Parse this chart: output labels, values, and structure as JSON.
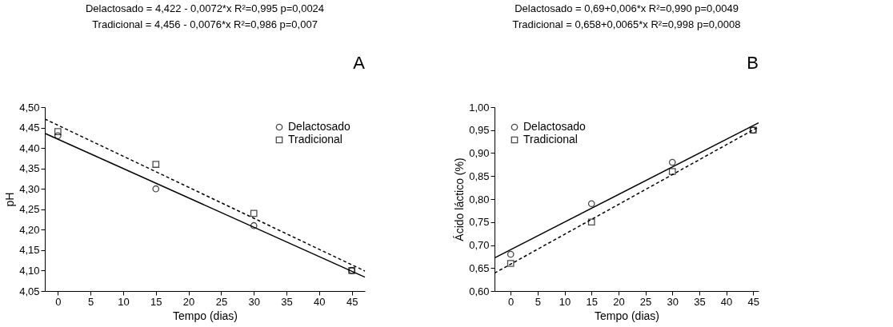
{
  "chart_data": [
    {
      "type": "scatter",
      "title": "A",
      "annotations": [
        "Delactosado = 4,422 - 0,0072*x R²=0,995 p=0,0024",
        "Tradicional = 4,456 - 0,0076*x R²=0,986 p=0,007"
      ],
      "xlabel": "Tempo (dias)",
      "ylabel": "pH",
      "xlim": [
        -2,
        47
      ],
      "ylim": [
        4.05,
        4.5
      ],
      "xticks": [
        0,
        5,
        10,
        15,
        20,
        25,
        30,
        35,
        40,
        45
      ],
      "yticks": [
        {
          "value": 4.05,
          "label": "4,05"
        },
        {
          "value": 4.1,
          "label": "4,10"
        },
        {
          "value": 4.15,
          "label": "4,15"
        },
        {
          "value": 4.2,
          "label": "4,20"
        },
        {
          "value": 4.25,
          "label": "4,25"
        },
        {
          "value": 4.3,
          "label": "4,30"
        },
        {
          "value": 4.35,
          "label": "4,35"
        },
        {
          "value": 4.4,
          "label": "4,40"
        },
        {
          "value": 4.45,
          "label": "4,45"
        },
        {
          "value": 4.5,
          "label": "4,50"
        }
      ],
      "legend": "top right",
      "grid": false,
      "series": [
        {
          "name": "Delactosado",
          "marker": "circle",
          "color": "#000000",
          "x": [
            0,
            15,
            30,
            45
          ],
          "values": [
            4.43,
            4.3,
            4.21,
            4.1
          ]
        },
        {
          "name": "Tradicional",
          "marker": "square",
          "color": "#000000",
          "x": [
            0,
            15,
            30,
            45
          ],
          "values": [
            4.44,
            4.36,
            4.24,
            4.1
          ]
        },
        {
          "type": "line",
          "line_style": "solid",
          "color": "#000000",
          "x": [
            -2,
            47
          ],
          "values": [
            4.436,
            4.084
          ]
        },
        {
          "type": "line",
          "line_style": "dashed",
          "color": "#000000",
          "x": [
            -2,
            47
          ],
          "values": [
            4.471,
            4.099
          ]
        }
      ]
    },
    {
      "type": "scatter",
      "title": "B",
      "annotations": [
        "Delactosado = 0,69+0,006*x R²=0,990 p=0,0049",
        "Tradicional = 0,658+0,0065*x  R²=0,998 p=0,0008"
      ],
      "xlabel": "Tempo (dias)",
      "ylabel": "Ácido láctico (%)",
      "xlim": [
        -3,
        46
      ],
      "ylim": [
        0.6,
        1.0
      ],
      "xticks": [
        0,
        5,
        10,
        15,
        20,
        25,
        30,
        35,
        40,
        45
      ],
      "yticks": [
        {
          "value": 0.6,
          "label": "0,60"
        },
        {
          "value": 0.65,
          "label": "0,65"
        },
        {
          "value": 0.7,
          "label": "0,70"
        },
        {
          "value": 0.75,
          "label": "0,75"
        },
        {
          "value": 0.8,
          "label": "0,80"
        },
        {
          "value": 0.85,
          "label": "0,85"
        },
        {
          "value": 0.9,
          "label": "0,90"
        },
        {
          "value": 0.95,
          "label": "0,95"
        },
        {
          "value": 1.0,
          "label": "1,00"
        }
      ],
      "legend": "top left",
      "grid": false,
      "series": [
        {
          "name": "Delactosado",
          "marker": "circle",
          "color": "#000000",
          "x": [
            0,
            15,
            30,
            45
          ],
          "values": [
            0.68,
            0.79,
            0.88,
            0.95
          ]
        },
        {
          "name": "Tradicional",
          "marker": "square",
          "color": "#000000",
          "x": [
            0,
            15,
            30,
            45
          ],
          "values": [
            0.66,
            0.75,
            0.86,
            0.95
          ]
        },
        {
          "type": "line",
          "line_style": "solid",
          "color": "#000000",
          "x": [
            -3,
            46
          ],
          "values": [
            0.672,
            0.966
          ]
        },
        {
          "type": "line",
          "line_style": "dashed",
          "color": "#000000",
          "x": [
            -3,
            46
          ],
          "values": [
            0.639,
            0.957
          ]
        }
      ]
    }
  ]
}
